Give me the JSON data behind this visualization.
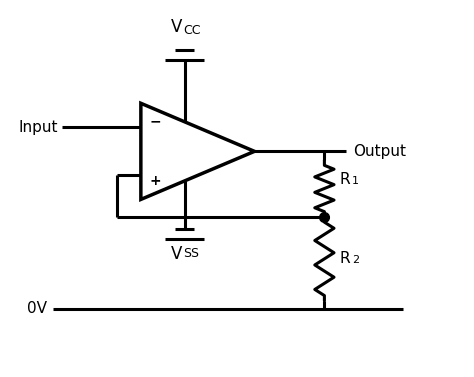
{
  "bg_color": "#ffffff",
  "line_color": "#000000",
  "line_width": 2.2,
  "fig_width": 4.74,
  "fig_height": 3.77,
  "labels": {
    "vcc": "V",
    "vcc_sub": "CC",
    "vss": "V",
    "vss_sub": "SS",
    "input": "Input",
    "output": "Output",
    "r1": "R",
    "r1_sub": "1",
    "r2": "R",
    "r2_sub": "2",
    "gnd": "0V"
  }
}
